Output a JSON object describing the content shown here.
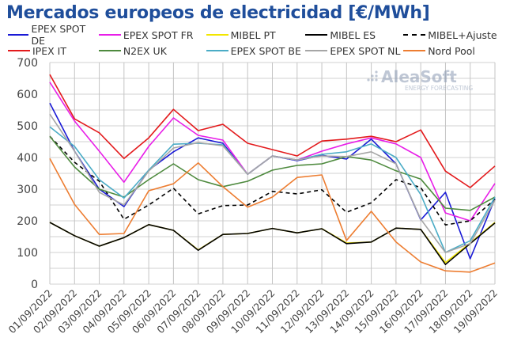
{
  "chart_data": {
    "type": "line",
    "title": "Mercados europeos de electricidad [€/MWh]",
    "xlabel": "",
    "ylabel": "",
    "ylim": [
      0,
      700
    ],
    "yticks": [
      "0",
      "100",
      "200",
      "300",
      "400",
      "500",
      "600",
      "700"
    ],
    "grid": true,
    "legend_position": "top",
    "watermark": {
      "brand": "AleaSoft",
      "tagline": "ENERGY FORECASTING"
    },
    "categories": [
      "01/09/2022",
      "02/09/2022",
      "03/09/2022",
      "04/09/2022",
      "05/09/2022",
      "06/09/2022",
      "07/09/2022",
      "08/09/2022",
      "09/09/2022",
      "10/09/2022",
      "11/09/2022",
      "12/09/2022",
      "13/09/2022",
      "14/09/2022",
      "15/09/2022",
      "16/09/2022",
      "17/09/2022",
      "18/09/2022",
      "19/09/2022"
    ],
    "series": [
      {
        "name": "EPEX SPOT DE",
        "color": "#1a1ad6",
        "dashed": false,
        "values": [
          572,
          420,
          300,
          245,
          360,
          418,
          462,
          445,
          347,
          405,
          390,
          407,
          395,
          458,
          380,
          203,
          290,
          80,
          270
        ]
      },
      {
        "name": "EPEX SPOT FR",
        "color": "#e81ee8",
        "dashed": false,
        "values": [
          638,
          515,
          420,
          322,
          435,
          525,
          470,
          455,
          347,
          405,
          392,
          420,
          443,
          462,
          443,
          400,
          225,
          200,
          318
        ]
      },
      {
        "name": "MIBEL PT",
        "color": "#f2e600",
        "dashed": false,
        "values": [
          195,
          153,
          120,
          147,
          188,
          170,
          108,
          157,
          160,
          176,
          162,
          175,
          130,
          133,
          177,
          173,
          68,
          130,
          195
        ]
      },
      {
        "name": "MIBEL ES",
        "color": "#000000",
        "dashed": false,
        "values": [
          195,
          153,
          120,
          147,
          188,
          170,
          107,
          157,
          160,
          176,
          162,
          175,
          128,
          133,
          177,
          173,
          62,
          128,
          193
        ]
      },
      {
        "name": "MIBEL+Ajuste",
        "color": "#000000",
        "dashed": true,
        "values": [
          467,
          385,
          325,
          205,
          250,
          303,
          222,
          248,
          250,
          293,
          285,
          298,
          227,
          257,
          330,
          305,
          187,
          200,
          268
        ]
      },
      {
        "name": "IPEX IT",
        "color": "#e31a1c",
        "dashed": false,
        "values": [
          662,
          522,
          478,
          397,
          462,
          552,
          485,
          505,
          445,
          425,
          405,
          452,
          458,
          467,
          450,
          487,
          357,
          305,
          373
        ]
      },
      {
        "name": "N2EX UK",
        "color": "#4e8a3e",
        "dashed": false,
        "values": [
          467,
          370,
          300,
          275,
          330,
          380,
          330,
          308,
          325,
          360,
          375,
          380,
          403,
          392,
          358,
          332,
          240,
          233,
          275
        ]
      },
      {
        "name": "EPEX SPOT BE",
        "color": "#4bacc6",
        "dashed": false,
        "values": [
          497,
          435,
          330,
          272,
          360,
          442,
          445,
          440,
          347,
          405,
          392,
          410,
          418,
          443,
          400,
          283,
          100,
          137,
          275
        ]
      },
      {
        "name": "EPEX SPOT NL",
        "color": "#a6a6a6",
        "dashed": false,
        "values": [
          537,
          420,
          290,
          250,
          357,
          430,
          447,
          437,
          347,
          405,
          392,
          405,
          403,
          418,
          380,
          205,
          100,
          128,
          265
        ]
      },
      {
        "name": "Nord Pool",
        "color": "#ed7d31",
        "dashed": false,
        "values": [
          397,
          252,
          157,
          160,
          295,
          317,
          383,
          308,
          243,
          275,
          337,
          345,
          138,
          230,
          133,
          70,
          42,
          38,
          67
        ]
      }
    ]
  }
}
